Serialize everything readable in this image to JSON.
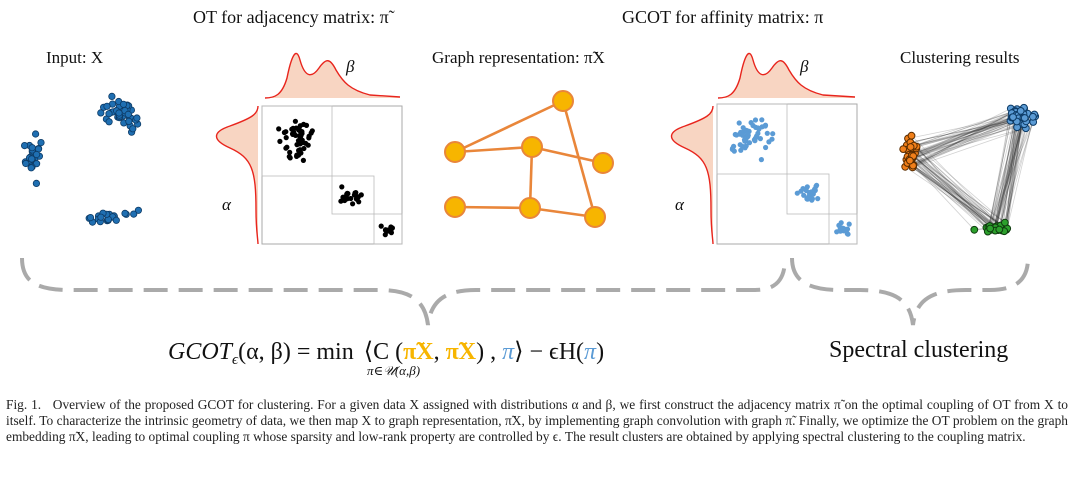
{
  "titles": {
    "ot": "OT for adjacency matrix: π̃",
    "gcot": "GCOT for affinity matrix: π",
    "input": "Input: X",
    "graph": "Graph representation: π̃X",
    "clustering": "Clustering results"
  },
  "marginals": {
    "alpha": "α",
    "beta": "β"
  },
  "formula": {
    "lhs": "GCOT",
    "sub_eps": "ϵ",
    "args": "(α, β) = ",
    "min": "min",
    "sub_min": "π∈𝒰(α,β)",
    "body_1": "⟨C (",
    "pix_1": "π̃X",
    "comma": ", ",
    "pix_2": "π̃X",
    "body_2": ") , ",
    "pi_1": "π",
    "body_3": "⟩ − ϵH(",
    "pi_2": "π",
    "body_4": ")"
  },
  "spectral": "Spectral clustering",
  "caption": {
    "fig_no": "Fig. 1.",
    "text": "Overview of the proposed GCOT for clustering. For a given data X assigned with distributions α and β, we first construct the adjacency matrix π̃ on the optimal coupling of OT from X to itself. To characterize the intrinsic geometry of data, we then map X to graph representation, π̃X, by implementing graph convolution with graph π̃. Finally, we optimize the OT problem on the graph embedding π̃X, leading to optimal coupling π whose sparsity and low-rank property are controlled by ϵ. The result clusters are obtained by applying spectral clustering to the coupling matrix."
  },
  "colors": {
    "red": "#e8251d",
    "peach": "#f8d5c2",
    "gold": "#f7b500",
    "orange_edge": "#e9863a",
    "blue": "#5b9bd5",
    "dark_blue": "#1f6fb2",
    "orange": "#f07f1a",
    "green": "#2ca02c",
    "gray": "#aaaaaa"
  }
}
